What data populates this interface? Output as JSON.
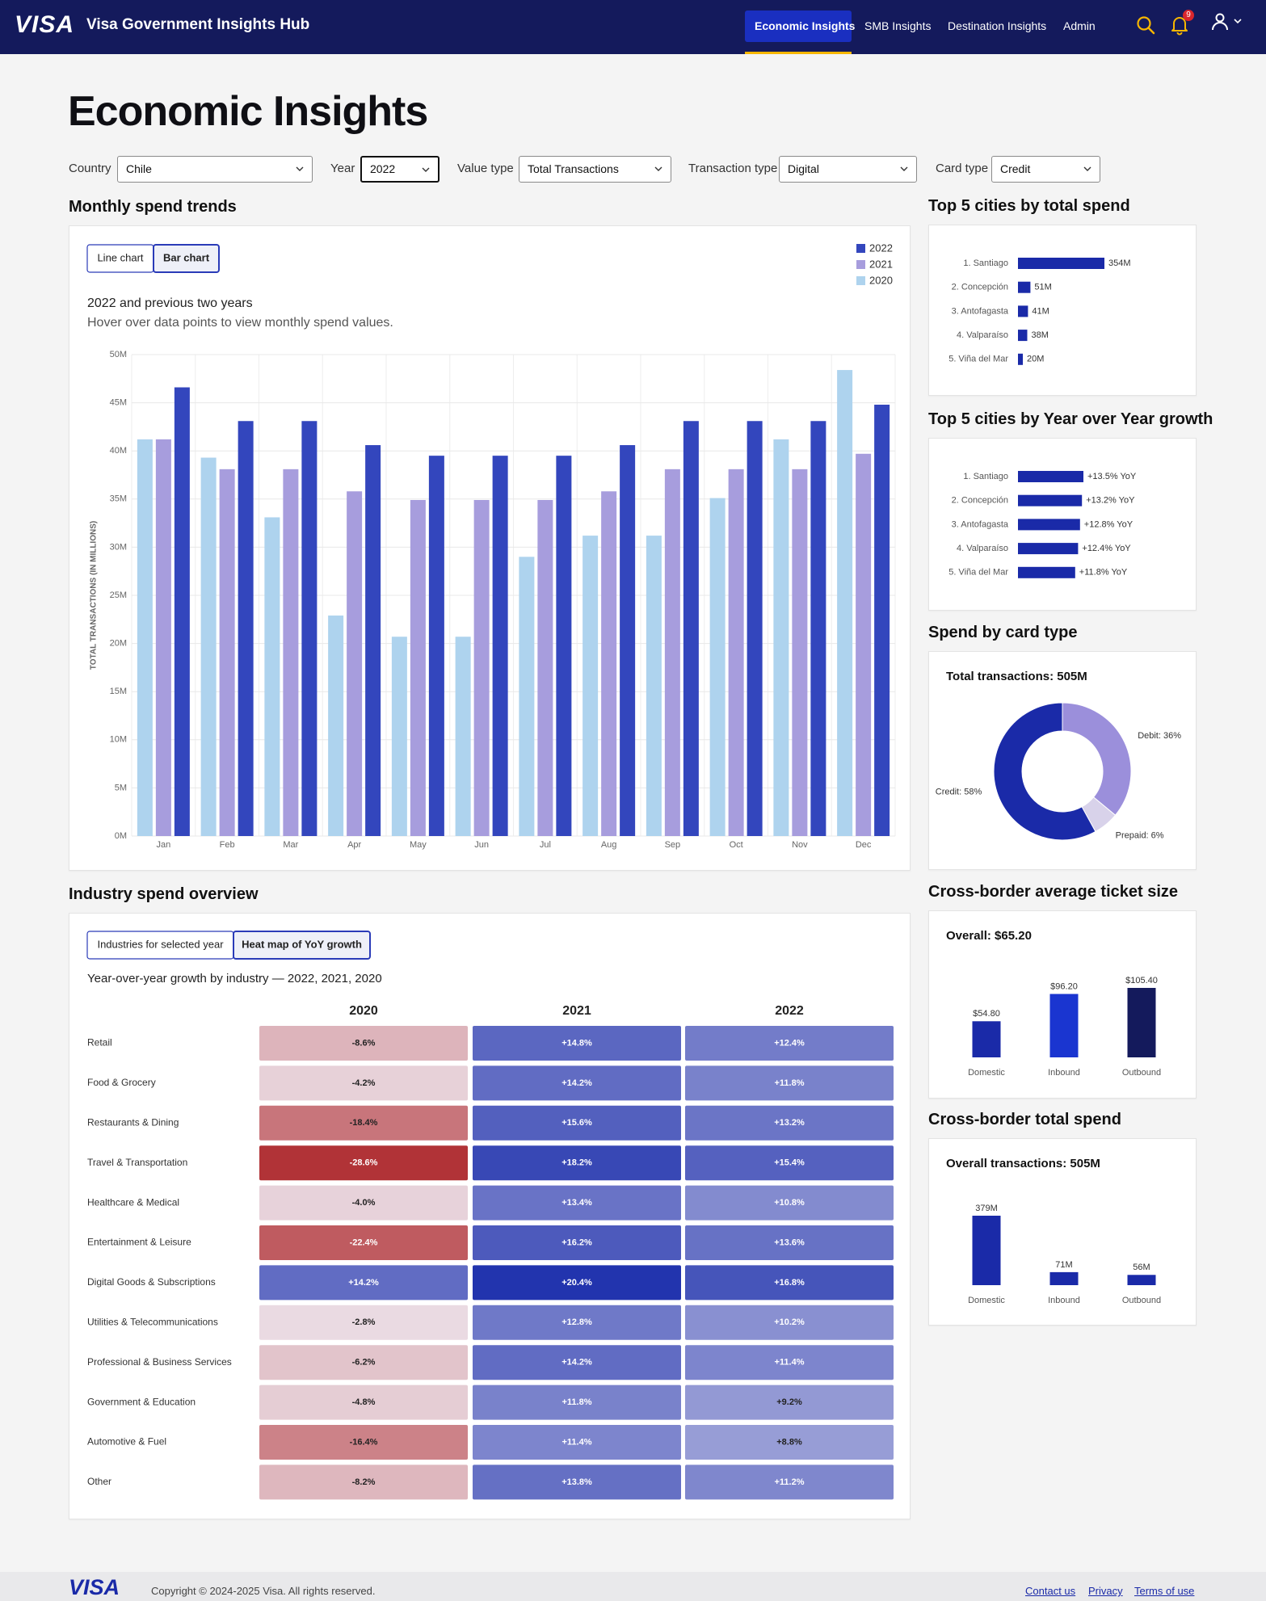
{
  "header": {
    "logo": "VISA",
    "title": "Visa Government Insights Hub",
    "nav": [
      "Economic Insights",
      "SMB Insights",
      "Destination Insights",
      "Admin"
    ],
    "notification_count": 9
  },
  "page_title": "Economic Insights",
  "filters": [
    {
      "label": "Country",
      "value": "Chile"
    },
    {
      "label": "Year",
      "value": "2022"
    },
    {
      "label": "Value type",
      "value": "Total Transactions"
    },
    {
      "label": "Transaction type",
      "value": "Digital"
    },
    {
      "label": "Card type",
      "value": "Credit"
    }
  ],
  "chart_data": [
    {
      "type": "bar",
      "title": "Monthly spend trends",
      "view_toggle": [
        "Line chart",
        "Bar chart"
      ],
      "subtitle": "2022 and previous two years",
      "note": "Hover over data points to view monthly spend values.",
      "ylabel": "TOTAL TRANSACTIONS (IN MILLIONS)",
      "categories": [
        "Jan",
        "Feb",
        "Mar",
        "Apr",
        "May",
        "Jun",
        "Jul",
        "Aug",
        "Sep",
        "Oct",
        "Nov",
        "Dec"
      ],
      "series": [
        {
          "name": "2022",
          "color": "#3346bd",
          "values": [
            46.6,
            43.1,
            43.1,
            40.6,
            39.5,
            39.5,
            39.5,
            40.6,
            43.1,
            43.1,
            43.1,
            44.8
          ]
        },
        {
          "name": "2021",
          "color": "#a79ddd",
          "values": [
            41.2,
            38.1,
            38.1,
            35.8,
            34.9,
            34.9,
            34.9,
            35.8,
            38.1,
            38.1,
            38.1,
            39.7
          ]
        },
        {
          "name": "2020",
          "color": "#aed3ee",
          "values": [
            41.2,
            39.3,
            33.1,
            22.9,
            20.7,
            20.7,
            29.0,
            31.2,
            31.2,
            35.1,
            41.2,
            48.4
          ]
        }
      ],
      "ylim": [
        0,
        50
      ],
      "yticks": [
        {
          "value": 0,
          "label": "0M"
        },
        {
          "value": 5,
          "label": "5M"
        },
        {
          "value": 10,
          "label": "10M"
        },
        {
          "value": 15,
          "label": "15M"
        },
        {
          "value": 20,
          "label": "20M"
        },
        {
          "value": 25,
          "label": "25M"
        },
        {
          "value": 30,
          "label": "30M"
        },
        {
          "value": 35,
          "label": "35M"
        },
        {
          "value": 40,
          "label": "40M"
        },
        {
          "value": 45,
          "label": "45M"
        },
        {
          "value": 50,
          "label": "50M"
        }
      ],
      "grid": true,
      "legend": "top-right"
    },
    {
      "type": "hbar",
      "title": "Top 5 cities by total spend",
      "categories": [
        "1. Santiago",
        "2. Concepción",
        "3. Antofagasta",
        "4. Valparaíso",
        "5. Viña del Mar"
      ],
      "values": [
        354,
        51,
        41,
        38,
        20
      ],
      "value_labels": [
        "354M",
        "51M",
        "41M",
        "38M",
        "20M"
      ],
      "color": "#1a2aa8"
    },
    {
      "type": "hbar",
      "title": "Top 5 cities by Year over Year growth",
      "categories": [
        "1. Santiago",
        "2. Concepción",
        "3. Antofagasta",
        "4. Valparaíso",
        "5. Viña del Mar"
      ],
      "values": [
        13.5,
        13.2,
        12.8,
        12.4,
        11.8
      ],
      "value_labels": [
        "+13.5% YoY",
        "+13.2% YoY",
        "+12.8% YoY",
        "+12.4% YoY",
        "+11.8% YoY"
      ],
      "color": "#1a2aa8"
    },
    {
      "type": "donut",
      "title": "Spend by card type",
      "subtitle": "Total transactions: 505M",
      "labels": [
        "Debit: 36%",
        "Prepaid: 6%",
        "Credit: 58%"
      ],
      "values": [
        36,
        6,
        58
      ],
      "colors": [
        "#9b8fdb",
        "#d8d2ea",
        "#1a2aa8"
      ]
    },
    {
      "type": "column",
      "title": "Cross-border average ticket size",
      "subtitle": "Overall: $65.20",
      "categories": [
        "Domestic",
        "Inbound",
        "Outbound"
      ],
      "values": [
        54.8,
        96.2,
        105.4
      ],
      "value_labels": [
        "$54.80",
        "$96.20",
        "$105.40"
      ],
      "colors": [
        "#1a2aa8",
        "#1a35d0",
        "#141a5c"
      ]
    },
    {
      "type": "column",
      "title": "Cross-border total spend",
      "subtitle": "Overall transactions: 505M",
      "categories": [
        "Domestic",
        "Inbound",
        "Outbound"
      ],
      "values": [
        379,
        71,
        56
      ],
      "value_labels": [
        "379M",
        "71M",
        "56M"
      ],
      "colors": [
        "#1a2aa8",
        "#1a2aa8",
        "#1a2aa8"
      ]
    },
    {
      "type": "heatmap",
      "title": "Industry spend overview",
      "view_toggle": [
        "Industries for selected year",
        "Heat map of YoY growth"
      ],
      "subtitle": "Year-over-year growth by industry — 2022, 2021, 2020",
      "x": [
        "2020",
        "2021",
        "2022"
      ],
      "categories": [
        "Retail",
        "Food & Grocery",
        "Restaurants & Dining",
        "Travel & Transportation",
        "Healthcare & Medical",
        "Entertainment & Leisure",
        "Digital Goods & Subscriptions",
        "Utilities & Telecommunications",
        "Professional & Business Services",
        "Government & Education",
        "Automotive & Fuel",
        "Other"
      ],
      "values": [
        [
          -8.6,
          14.8,
          12.4
        ],
        [
          -4.2,
          14.2,
          11.8
        ],
        [
          -18.4,
          15.6,
          13.2
        ],
        [
          -28.6,
          18.2,
          15.4
        ],
        [
          -4.0,
          13.4,
          10.8
        ],
        [
          -22.4,
          16.2,
          13.6
        ],
        [
          14.2,
          20.4,
          16.8
        ],
        [
          -2.8,
          12.8,
          10.2
        ],
        [
          -6.2,
          14.2,
          11.4
        ],
        [
          -4.8,
          11.8,
          9.2
        ],
        [
          -16.4,
          11.4,
          8.8
        ],
        [
          -8.2,
          13.8,
          11.2
        ]
      ],
      "value_labels": [
        [
          "-8.6%",
          "+14.8%",
          "+12.4%"
        ],
        [
          "-4.2%",
          "+14.2%",
          "+11.8%"
        ],
        [
          "-18.4%",
          "+15.6%",
          "+13.2%"
        ],
        [
          "-28.6%",
          "+18.2%",
          "+15.4%"
        ],
        [
          "-4.0%",
          "+13.4%",
          "+10.8%"
        ],
        [
          "-22.4%",
          "+16.2%",
          "+13.6%"
        ],
        [
          "+14.2%",
          "+20.4%",
          "+16.8%"
        ],
        [
          "-2.8%",
          "+12.8%",
          "+10.2%"
        ],
        [
          "-6.2%",
          "+14.2%",
          "+11.4%"
        ],
        [
          "-4.8%",
          "+11.8%",
          "+9.2%"
        ],
        [
          "-16.4%",
          "+11.4%",
          "+8.8%"
        ],
        [
          "-8.2%",
          "+13.8%",
          "+11.2%"
        ]
      ],
      "negative_color": "#ae2a2e",
      "positive_color": "#1226a8"
    }
  ],
  "footer": {
    "logo": "VISA",
    "copyright": "Copyright © 2024-2025 Visa. All rights reserved.",
    "links": [
      "Contact us",
      "Privacy",
      "Terms of use"
    ]
  }
}
